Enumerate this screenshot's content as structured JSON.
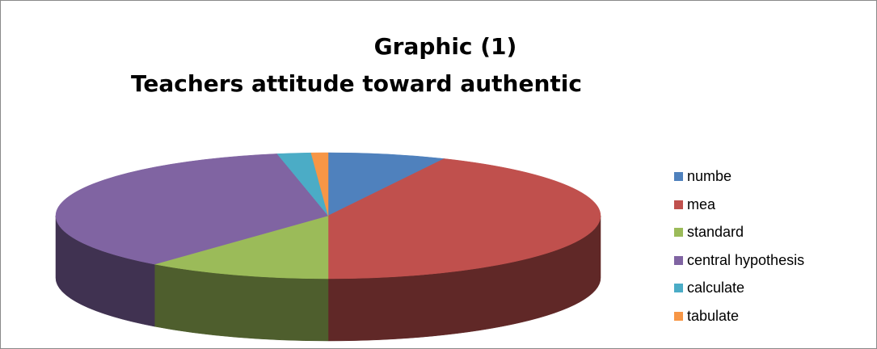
{
  "chart_data": {
    "type": "pie",
    "title": "Graphic   (1)",
    "subtitle": "Teachers attitude toward authentic",
    "three_d": true,
    "legend_position": "right",
    "slices": [
      {
        "label": "numbe",
        "value": 7,
        "color": "#4f81bd"
      },
      {
        "label": "mea",
        "value": 43,
        "color": "#c0504d"
      },
      {
        "label": "standard",
        "value": 11,
        "color": "#9bbb59"
      },
      {
        "label": "central hypothesis",
        "value": 36,
        "color": "#8064a2"
      },
      {
        "label": "calculate",
        "value": 2,
        "color": "#4bacc6"
      },
      {
        "label": "tabulate",
        "value": 1,
        "color": "#f79646"
      }
    ]
  }
}
